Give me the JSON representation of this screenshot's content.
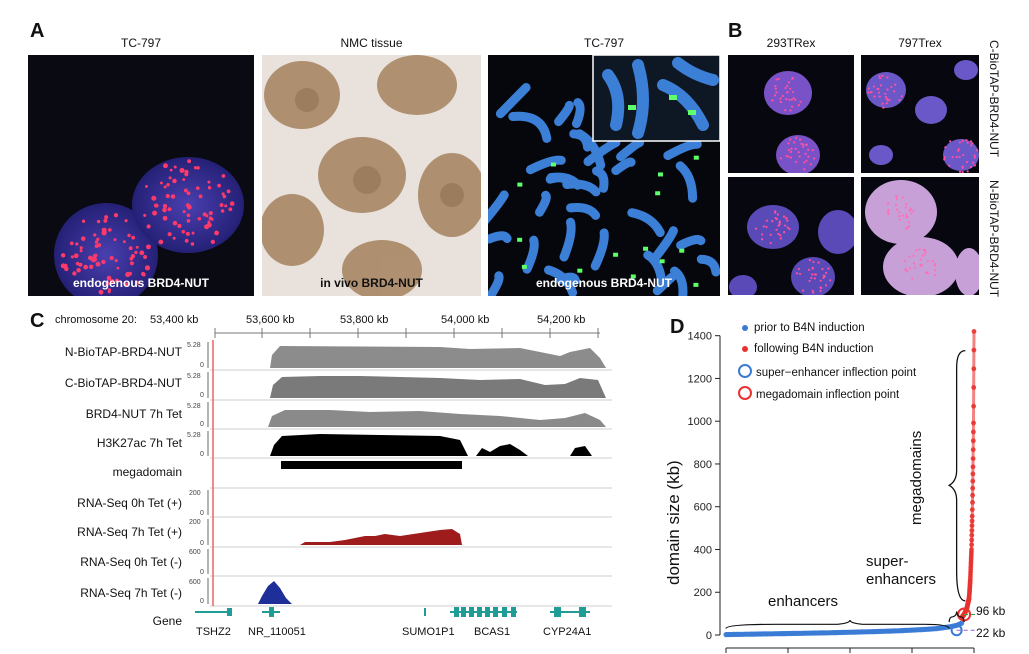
{
  "panels": {
    "A": {
      "letter": "A",
      "images": [
        {
          "title": "TC-797",
          "caption": "endogenous BRD4-NUT"
        },
        {
          "title": "NMC tissue",
          "caption": "in vivo BRD4-NUT"
        },
        {
          "title": "TC-797",
          "caption": "endogenous BRD4-NUT"
        }
      ]
    },
    "B": {
      "letter": "B",
      "columns": [
        "293TRex",
        "797Trex"
      ],
      "rows": [
        "C-BioTAP-BRD4-NUT",
        "N-BioTAP-BRD4-NUT"
      ]
    },
    "C": {
      "letter": "C",
      "chrom_label": "chromosome 20:",
      "ticks": [
        "53,400 kb",
        "53,600 kb",
        "53,800 kb",
        "54,000 kb",
        "54,200 kb"
      ],
      "tracks": [
        {
          "label": "N-BioTAP-BRD4-NUT",
          "ymax": "5.28",
          "ymin": "0"
        },
        {
          "label": "C-BioTAP-BRD4-NUT",
          "ymax": "5.28",
          "ymin": "0"
        },
        {
          "label": "BRD4-NUT 7h Tet",
          "ymax": "5.28",
          "ymin": "0"
        },
        {
          "label": "H3K27ac 7h Tet",
          "ymax": "5.28",
          "ymin": "0"
        },
        {
          "label": "megadomain"
        },
        {
          "label": "RNA-Seq 0h Tet (+)",
          "ymax": "200",
          "ymin": "0"
        },
        {
          "label": "RNA-Seq 7h Tet (+)",
          "ymax": "200",
          "ymin": "0"
        },
        {
          "label": "RNA-Seq 0h Tet (-)",
          "ymax": "600",
          "ymin": "0"
        },
        {
          "label": "RNA-Seq 7h Tet (-)",
          "ymax": "600",
          "ymin": "0"
        },
        {
          "label": "Gene"
        }
      ],
      "genes": [
        "TSHZ2",
        "NR_110051",
        "SUMO1P1",
        "BCAS1",
        "CYP24A1"
      ]
    },
    "D": {
      "letter": "D",
      "legend": [
        "prior to B4N induction",
        "following B4N induction",
        "super−enhancer inflection point",
        "megadomain inflection point"
      ],
      "annotations": {
        "enhancers": "enhancers",
        "super_line1": "super-",
        "super_line2": "enhancers",
        "megadomains": "megadomains",
        "kb96": "96 kb",
        "kb22": "22 kb"
      },
      "colors": {
        "prior": "#3a7bd5",
        "following": "#e8322f",
        "green": "#3aaa35",
        "purple": "#9b59d0"
      }
    }
  },
  "chart_data": {
    "type": "scatter",
    "ylabel": "domain size (kb)",
    "ylim": [
      0,
      1450
    ],
    "yticks": [
      0,
      200,
      400,
      600,
      800,
      1000,
      1200,
      1400
    ],
    "legend_position": "top-left",
    "grid": false,
    "series": [
      {
        "name": "prior to B4N induction",
        "x": [
          0,
          0.1,
          0.2,
          0.3,
          0.4,
          0.5,
          0.6,
          0.7,
          0.8,
          0.85,
          0.9,
          0.93,
          0.95
        ],
        "y": [
          2,
          4,
          6,
          8,
          10,
          13,
          16,
          20,
          26,
          30,
          38,
          45,
          55
        ]
      },
      {
        "name": "following B4N induction",
        "x": [
          0.95,
          0.96,
          0.97,
          0.98,
          0.985,
          0.99,
          0.993,
          0.996,
          0.998,
          1.0
        ],
        "y": [
          80,
          96,
          120,
          170,
          260,
          400,
          560,
          800,
          1000,
          1420
        ]
      }
    ],
    "inflection_points": [
      {
        "name": "super−enhancer inflection point",
        "x": 0.93,
        "y": 22
      },
      {
        "name": "megadomain inflection point",
        "x": 0.96,
        "y": 96
      }
    ]
  }
}
